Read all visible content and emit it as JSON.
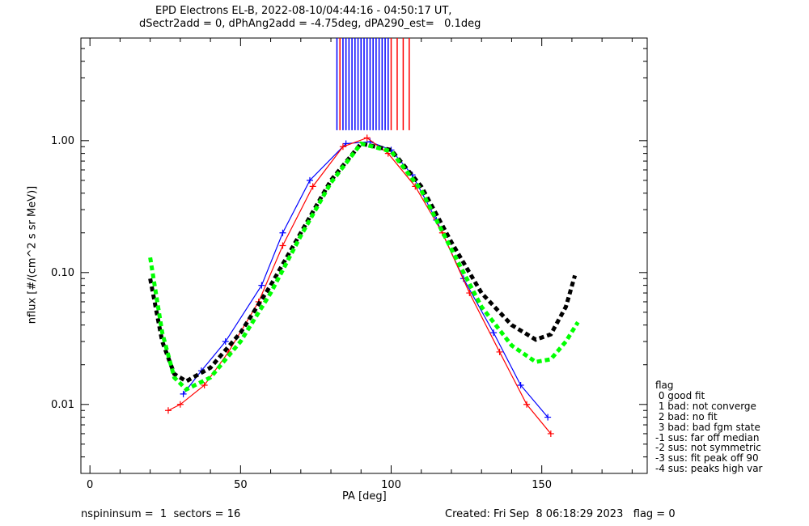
{
  "header": {
    "title_line1": "EPD Electrons EL-B, 2022-08-10/04:44:16 - 04:50:17 UT,",
    "title_line2": "dSectr2add = 0, dPhAng2add = -4.75deg, dPA290_est=   0.1deg"
  },
  "footer": {
    "left": "nspininsum =  1  sectors = 16",
    "right": "Created: Fri Sep  8 06:18:29 2023   flag = 0"
  },
  "legend": {
    "title": "flag",
    "items": [
      " 0 good fit",
      " 1 bad: not converge",
      " 2 bad: no fit",
      " 3 bad: bad fgm state",
      "-1 sus: far off median",
      "-2 sus: not symmetric",
      "-3 sus: fit peak off 90",
      "-4 sus: peaks high var"
    ]
  },
  "colors": {
    "blue": "#0000ff",
    "red": "#ff0000",
    "green": "#00ff00",
    "black": "#000000"
  },
  "chart_data": {
    "type": "line",
    "xlabel": "PA [deg]",
    "ylabel": "nflux [#/(cm^2 s sr MeV)]",
    "xlim": [
      -3,
      185
    ],
    "ylim": [
      0.003,
      6.0
    ],
    "yscale": "log",
    "x_ticks": [
      0,
      50,
      100,
      150
    ],
    "y_ticks": [
      0.01,
      0.1,
      1.0
    ],
    "y_tick_labels": [
      "0.01",
      "0.10",
      "1.00"
    ],
    "series": [
      {
        "color": "blue",
        "style": "line+cross",
        "x": [
          31,
          37,
          45,
          57,
          64,
          73,
          85,
          93,
          100,
          107,
          115,
          124,
          134,
          143,
          152
        ],
        "y": [
          0.012,
          0.018,
          0.03,
          0.08,
          0.2,
          0.5,
          0.95,
          0.98,
          0.85,
          0.55,
          0.25,
          0.09,
          0.035,
          0.014,
          0.008
        ]
      },
      {
        "color": "red",
        "style": "line+cross",
        "x": [
          26,
          30,
          38,
          46,
          56,
          64,
          74,
          84,
          92,
          99,
          108,
          117,
          126,
          136,
          145,
          153
        ],
        "y": [
          0.009,
          0.01,
          0.014,
          0.025,
          0.06,
          0.16,
          0.45,
          0.9,
          1.05,
          0.8,
          0.45,
          0.2,
          0.07,
          0.025,
          0.01,
          0.006
        ]
      },
      {
        "color": "black",
        "style": "dashed-fit",
        "x": [
          20,
          24,
          28,
          32,
          40,
          50,
          60,
          70,
          80,
          90,
          100,
          110,
          120,
          130,
          140,
          148,
          153,
          158,
          161
        ],
        "y": [
          0.09,
          0.03,
          0.017,
          0.015,
          0.019,
          0.035,
          0.08,
          0.2,
          0.5,
          0.95,
          0.85,
          0.45,
          0.17,
          0.07,
          0.04,
          0.031,
          0.034,
          0.055,
          0.095
        ]
      },
      {
        "color": "green",
        "style": "dashed-fit",
        "x": [
          20,
          24,
          28,
          32,
          40,
          50,
          60,
          70,
          80,
          90,
          100,
          110,
          120,
          130,
          140,
          148,
          153,
          158,
          162
        ],
        "y": [
          0.13,
          0.035,
          0.016,
          0.013,
          0.016,
          0.03,
          0.07,
          0.19,
          0.48,
          0.95,
          0.83,
          0.42,
          0.15,
          0.055,
          0.028,
          0.021,
          0.022,
          0.03,
          0.042
        ]
      }
    ],
    "vertical_marks": {
      "color": "blue",
      "x": [
        82,
        84,
        85,
        86,
        87,
        88,
        89,
        90,
        91,
        92,
        93,
        94,
        95,
        96,
        97,
        98,
        99
      ],
      "y_from": 1.2,
      "y_to": 6.0
    },
    "vertical_marks_red": {
      "color": "red",
      "x": [
        83,
        100,
        102,
        104,
        106
      ],
      "y_from": 1.2,
      "y_to": 6.0
    }
  }
}
